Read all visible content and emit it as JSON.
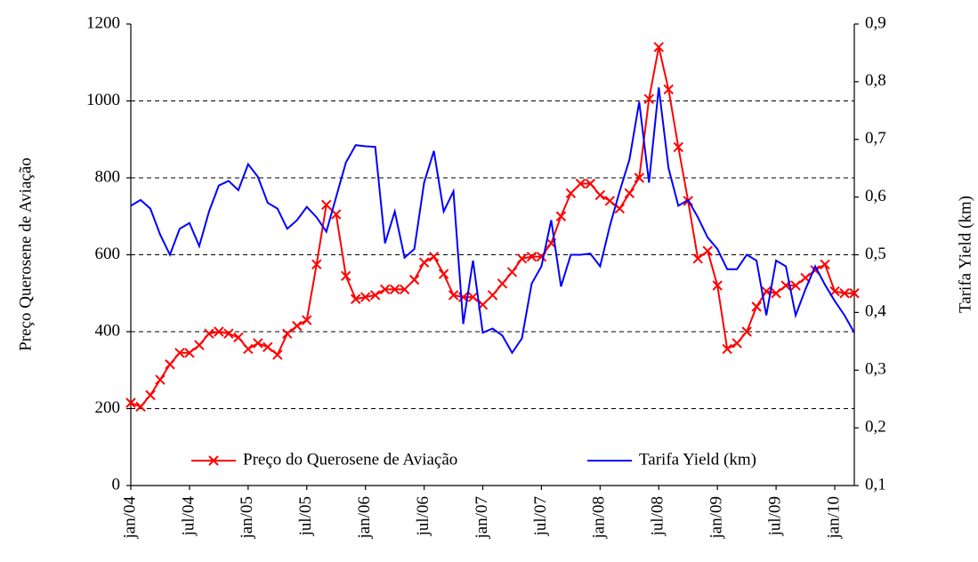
{
  "chart_data": {
    "type": "line",
    "y_label": "Preço Querosene de Aviação",
    "y2_label": "Tarifa Yield (km)",
    "categories": [
      "jan/04",
      null,
      null,
      null,
      null,
      null,
      "jul/04",
      null,
      null,
      null,
      null,
      null,
      "jan/05",
      null,
      null,
      null,
      null,
      null,
      "jul/05",
      null,
      null,
      null,
      null,
      null,
      "jan/06",
      null,
      null,
      null,
      null,
      null,
      "jul/06",
      null,
      null,
      null,
      null,
      null,
      "jan/07",
      null,
      null,
      null,
      null,
      null,
      "jul/07",
      null,
      null,
      null,
      null,
      null,
      "jan/08",
      null,
      null,
      null,
      null,
      null,
      "jul/08",
      null,
      null,
      null,
      null,
      null,
      "jan/09",
      null,
      null,
      null,
      null,
      null,
      "jul/09",
      null,
      null,
      null,
      null,
      null,
      "jan/10",
      null,
      null
    ],
    "series": [
      {
        "name": "Preço do Querosene de Aviação",
        "color": "#ff0000",
        "axis": "y",
        "marker": "x",
        "values": [
          215,
          205,
          235,
          275,
          315,
          345,
          345,
          365,
          395,
          400,
          395,
          385,
          355,
          370,
          360,
          340,
          395,
          415,
          430,
          575,
          730,
          705,
          545,
          485,
          490,
          495,
          510,
          510,
          510,
          535,
          580,
          595,
          550,
          495,
          490,
          490,
          470,
          495,
          525,
          555,
          590,
          595,
          595,
          630,
          700,
          760,
          785,
          785,
          755,
          740,
          720,
          760,
          800,
          1005,
          1140,
          1030,
          880,
          740,
          590,
          610,
          520,
          355,
          370,
          400,
          465,
          505,
          500,
          520,
          520,
          540,
          560,
          575,
          505,
          500,
          500
        ]
      },
      {
        "name": "Tarifa Yield (km)",
        "color": "#0000ff",
        "axis": "y2",
        "marker": null,
        "values": [
          0.585,
          0.595,
          0.58,
          0.535,
          0.5,
          0.545,
          0.555,
          0.515,
          0.575,
          0.62,
          0.628,
          0.612,
          0.657,
          0.635,
          0.59,
          0.58,
          0.545,
          0.56,
          0.583,
          0.565,
          0.54,
          0.6,
          0.66,
          0.69,
          0.688,
          0.687,
          0.52,
          0.575,
          0.495,
          0.51,
          0.625,
          0.68,
          0.575,
          0.61,
          0.38,
          0.49,
          0.365,
          0.372,
          0.36,
          0.33,
          0.355,
          0.45,
          0.48,
          0.56,
          0.445,
          0.5,
          0.5,
          0.502,
          0.48,
          0.55,
          0.61,
          0.665,
          0.765,
          0.625,
          0.79,
          0.65,
          0.585,
          0.595,
          0.565,
          0.53,
          0.51,
          0.475,
          0.475,
          0.5,
          0.49,
          0.395,
          0.49,
          0.48,
          0.395,
          0.44,
          0.48,
          0.448,
          0.42,
          0.395,
          0.365
        ]
      }
    ],
    "ylim": [
      0,
      1200
    ],
    "yticks": [
      0,
      200,
      400,
      600,
      800,
      1000,
      1200
    ],
    "y2lim": [
      0.1,
      0.9
    ],
    "y2ticks": [
      {
        "value": 0.1,
        "label": "0,1"
      },
      {
        "value": 0.2,
        "label": "0,2"
      },
      {
        "value": 0.3,
        "label": "0,3"
      },
      {
        "value": 0.4,
        "label": "0,4"
      },
      {
        "value": 0.5,
        "label": "0,5"
      },
      {
        "value": 0.6,
        "label": "0,6"
      },
      {
        "value": 0.7,
        "label": "0,7"
      },
      {
        "value": 0.8,
        "label": "0,8"
      },
      {
        "value": 0.9,
        "label": "0,9"
      }
    ],
    "grid": true,
    "legend": "bottom"
  }
}
